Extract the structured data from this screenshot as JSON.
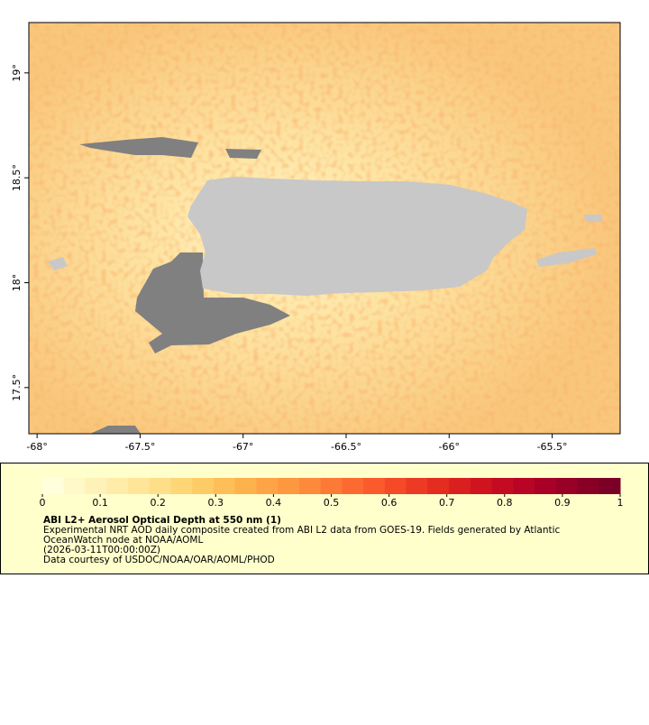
{
  "map": {
    "xlim": [
      -68.04,
      -65.17
    ],
    "ylim": [
      17.28,
      19.24
    ],
    "xticks": [
      {
        "value": -68,
        "label": "-68°"
      },
      {
        "value": -67.5,
        "label": "-67.5°"
      },
      {
        "value": -67,
        "label": "-67°"
      },
      {
        "value": -66.5,
        "label": "-66.5°"
      },
      {
        "value": -66,
        "label": "-66°"
      },
      {
        "value": -65.5,
        "label": "-65.5°"
      }
    ],
    "yticks": [
      {
        "value": 17.5,
        "label": "17.5°"
      },
      {
        "value": 18,
        "label": "18°"
      },
      {
        "value": 18.5,
        "label": "18.5°"
      },
      {
        "value": 19,
        "label": "19°"
      }
    ]
  },
  "legend": {
    "title": "ABI L2+ Aerosol Optical Depth at 550 nm (1)",
    "lines": [
      "Experimental NRT AOD daily composite created from ABI L2 data from GOES-19. Fields generated by Atlantic",
      "OceanWatch node at NOAA/AOML",
      "(2026-03-11T00:00:00Z)",
      "Data courtesy of USDOC/NOAA/OAR/AOML/PHOD"
    ],
    "colorbar": {
      "lim": [
        0,
        1
      ],
      "ticks": [
        0,
        0.1,
        0.2,
        0.3,
        0.4,
        0.5,
        0.6,
        0.7,
        0.8,
        0.9,
        1
      ],
      "colors": [
        "#ffffdd",
        "#fff8c8",
        "#fff2b8",
        "#ffeca8",
        "#ffe598",
        "#fede88",
        "#fed676",
        "#fecc66",
        "#febf58",
        "#feb24c",
        "#fea446",
        "#fd9740",
        "#fd8a3b",
        "#fc7a36",
        "#fc6a31",
        "#fb5a2c",
        "#f44a28",
        "#ec3a24",
        "#e42c20",
        "#da201e",
        "#cf141f",
        "#c40b22",
        "#b80525",
        "#a80026",
        "#980026",
        "#880026",
        "#7a0026"
      ]
    }
  }
}
